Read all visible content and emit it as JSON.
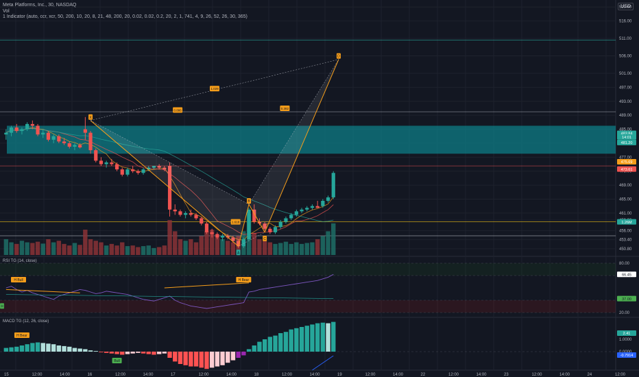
{
  "header": {
    "title": "Meta Platforms, Inc., 30, NASDAQ",
    "vol_label": "Vol",
    "indicator_label": "1 Indicator (auto, ccr, xcr, 50, 200, 10, 20, 8, 21, 48, 200, 20, 0.02, 0.02, 0.2, 20, 2, 1, 741, 4, 9, 26, 52, 26, 30, 365)",
    "currency": "USD"
  },
  "panes": {
    "rsi_label": "RSI TG (14, close)",
    "macd_label": "MACD TG (12, 26, close)"
  },
  "chart_data": {
    "type": "candlestick",
    "price_axis_ticks": [
      520.0,
      516.0,
      511.0,
      506.0,
      501.0,
      497.0,
      493.0,
      489.0,
      485.0,
      481.0,
      477.0,
      473.0,
      469.0,
      465.0,
      461.0,
      459.0,
      456.0,
      453.4,
      450.8
    ],
    "time_axis_ticks": [
      "15",
      "12:00",
      "14:00",
      "16",
      "12:00",
      "14:00",
      "17",
      "12:00",
      "14:00",
      "18",
      "12:00",
      "14:00",
      "19",
      "12:00",
      "14:00",
      "22",
      "12:00",
      "14:00",
      "23",
      "12:00",
      "14:00",
      "24",
      "12:00"
    ],
    "price_badges": [
      {
        "text": "483.84",
        "color": "#26a69a"
      },
      {
        "text": "14:01",
        "color": "#26a69a"
      },
      {
        "text": "481.20",
        "color": "#26a69a"
      },
      {
        "text": "475.69",
        "color": "#f59d1a"
      },
      {
        "text": "473.61",
        "color": "#ef5350"
      },
      {
        "text": "1.26M",
        "color": "#26a69a"
      }
    ],
    "rsi_ticks": [
      "80.00",
      "20.00"
    ],
    "rsi_badges": [
      {
        "text": "66.45",
        "color": "#ffffff"
      },
      {
        "text": "37.00",
        "color": "#4caf50"
      }
    ],
    "macd_ticks": [
      "1.0000",
      "0.0000"
    ],
    "macd_badges": [
      {
        "text": "2.41",
        "color": "#26a69a"
      },
      {
        "text": "-0.7914",
        "color": "#2962ff"
      }
    ],
    "pattern_labels": {
      "X": "X",
      "A": "A",
      "B": "B",
      "C": "C",
      "D": "D",
      "r1": "1.029",
      "r2": "0.382",
      "r3": "0.886",
      "r4": "1.618"
    },
    "signal_labels": {
      "rsi_bull": "H Bull",
      "rsi_bear": "H Bear",
      "macd_bear": "H Bear",
      "macd_bull": "Bull",
      "rsi_small": "H"
    },
    "candles": [
      [
        483.5,
        485.0,
        482.0,
        484.0
      ],
      [
        484.0,
        486.0,
        483.0,
        485.5
      ],
      [
        485.5,
        486.5,
        484.0,
        484.5
      ],
      [
        484.5,
        485.5,
        483.5,
        485.0
      ],
      [
        485.0,
        487.0,
        484.5,
        486.5
      ],
      [
        486.5,
        487.5,
        485.0,
        486.0
      ],
      [
        486.0,
        486.5,
        483.0,
        483.5
      ],
      [
        483.5,
        485.0,
        482.5,
        484.0
      ],
      [
        484.0,
        484.5,
        481.5,
        482.0
      ],
      [
        482.0,
        483.5,
        481.0,
        483.0
      ],
      [
        483.0,
        483.5,
        481.0,
        481.5
      ],
      [
        481.5,
        482.5,
        480.5,
        481.0
      ],
      [
        481.0,
        481.5,
        479.5,
        480.0
      ],
      [
        480.0,
        481.0,
        479.0,
        480.5
      ],
      [
        480.5,
        481.0,
        479.5,
        479.8
      ],
      [
        485.0,
        488.5,
        482.0,
        484.0
      ],
      [
        484.0,
        484.5,
        478.0,
        479.0
      ],
      [
        479.0,
        479.5,
        475.5,
        476.0
      ],
      [
        476.0,
        477.0,
        474.5,
        475.0
      ],
      [
        475.0,
        476.0,
        474.0,
        475.5
      ],
      [
        475.5,
        476.5,
        474.5,
        475.0
      ],
      [
        475.0,
        475.5,
        473.0,
        473.5
      ],
      [
        473.5,
        474.0,
        471.5,
        472.0
      ],
      [
        472.0,
        474.0,
        471.5,
        473.5
      ],
      [
        473.5,
        474.5,
        472.5,
        473.0
      ],
      [
        473.0,
        473.5,
        472.0,
        472.5
      ],
      [
        472.5,
        474.0,
        472.0,
        473.5
      ],
      [
        473.5,
        474.5,
        473.0,
        474.0
      ],
      [
        474.0,
        474.5,
        473.5,
        474.5
      ],
      [
        474.5,
        475.0,
        473.5,
        474.0
      ],
      [
        474.0,
        474.5,
        473.0,
        473.5
      ],
      [
        474.5,
        475.5,
        460.0,
        462.0
      ],
      [
        462.0,
        463.5,
        460.5,
        461.5
      ],
      [
        461.5,
        462.0,
        460.0,
        460.5
      ],
      [
        460.5,
        461.5,
        459.5,
        461.0
      ],
      [
        461.0,
        462.0,
        460.0,
        460.5
      ],
      [
        460.5,
        461.0,
        459.0,
        459.5
      ],
      [
        459.5,
        460.0,
        457.5,
        458.0
      ],
      [
        458.0,
        458.5,
        455.0,
        455.5
      ],
      [
        455.5,
        456.5,
        454.0,
        455.0
      ],
      [
        455.0,
        455.5,
        453.5,
        454.0
      ],
      [
        454.0,
        455.0,
        453.0,
        454.5
      ],
      [
        454.5,
        455.0,
        453.5,
        454.0
      ],
      [
        454.0,
        454.5,
        452.5,
        453.0
      ],
      [
        453.0,
        453.5,
        451.0,
        451.5
      ],
      [
        451.5,
        454.0,
        451.0,
        453.5
      ],
      [
        453.5,
        462.5,
        453.0,
        462.0
      ],
      [
        462.0,
        463.5,
        458.0,
        458.5
      ],
      [
        458.5,
        459.5,
        457.5,
        458.0
      ],
      [
        458.0,
        458.5,
        456.0,
        456.5
      ],
      [
        456.5,
        457.0,
        455.0,
        455.5
      ],
      [
        455.5,
        457.5,
        455.0,
        457.0
      ],
      [
        457.0,
        459.0,
        456.5,
        458.5
      ],
      [
        458.5,
        460.0,
        458.0,
        459.5
      ],
      [
        459.5,
        461.0,
        459.0,
        460.5
      ],
      [
        460.5,
        462.0,
        460.0,
        461.5
      ],
      [
        461.5,
        462.5,
        461.0,
        462.0
      ],
      [
        462.0,
        463.0,
        461.5,
        462.5
      ],
      [
        462.5,
        463.5,
        462.0,
        463.0
      ],
      [
        463.0,
        464.5,
        462.5,
        462.5
      ],
      [
        463.0,
        465.0,
        462.5,
        464.5
      ],
      [
        464.5,
        466.0,
        464.0,
        465.5
      ],
      [
        465.5,
        473.0,
        465.0,
        472.5
      ]
    ],
    "volumes": [
      0.5,
      0.4,
      0.35,
      0.45,
      0.4,
      0.38,
      0.42,
      0.36,
      0.5,
      0.4,
      0.45,
      0.35,
      0.3,
      0.38,
      0.32,
      0.8,
      0.5,
      0.45,
      0.4,
      0.3,
      0.35,
      0.3,
      0.4,
      0.28,
      0.3,
      0.25,
      0.28,
      0.3,
      0.22,
      0.25,
      0.3,
      1.1,
      0.75,
      0.5,
      0.45,
      0.5,
      0.4,
      0.6,
      0.75,
      0.8,
      0.55,
      0.5,
      0.45,
      0.4,
      0.6,
      0.75,
      1.3,
      0.7,
      0.5,
      0.45,
      0.4,
      0.35,
      0.38,
      0.42,
      0.35,
      0.4,
      0.35,
      0.38,
      0.4,
      0.5,
      0.6,
      0.75,
      1.0
    ],
    "rsi": [
      50,
      52,
      48,
      45,
      47,
      44,
      42,
      40,
      38,
      36,
      40,
      42,
      44,
      46,
      48,
      47,
      45,
      43,
      44,
      46,
      45,
      44,
      43,
      42,
      40,
      38,
      36,
      35,
      34,
      36,
      38,
      40,
      35,
      32,
      30,
      28,
      27,
      26,
      25,
      26,
      27,
      28,
      29,
      30,
      31,
      32,
      45,
      46,
      48,
      49,
      50,
      51,
      52,
      53,
      54,
      55,
      56,
      57,
      58,
      59,
      61,
      63,
      66.45
    ],
    "macd_hist": [
      0.3,
      0.35,
      0.4,
      0.5,
      0.6,
      0.7,
      0.75,
      0.7,
      0.65,
      0.6,
      0.5,
      0.45,
      0.4,
      0.3,
      0.25,
      0.2,
      0.1,
      0.05,
      -0.05,
      -0.1,
      -0.15,
      -0.2,
      -0.25,
      -0.2,
      -0.15,
      -0.1,
      -0.15,
      -0.2,
      -0.25,
      -0.2,
      -0.15,
      -0.5,
      -0.8,
      -1.0,
      -1.1,
      -1.2,
      -1.2,
      -1.3,
      -1.4,
      -1.3,
      -1.2,
      -1.1,
      -0.9,
      -0.7,
      -0.5,
      -0.3,
      0.2,
      0.5,
      0.8,
      1.0,
      1.2,
      1.3,
      1.5,
      1.6,
      1.8,
      1.9,
      2.0,
      2.1,
      2.2,
      2.3,
      2.35,
      2.3,
      2.41
    ]
  }
}
